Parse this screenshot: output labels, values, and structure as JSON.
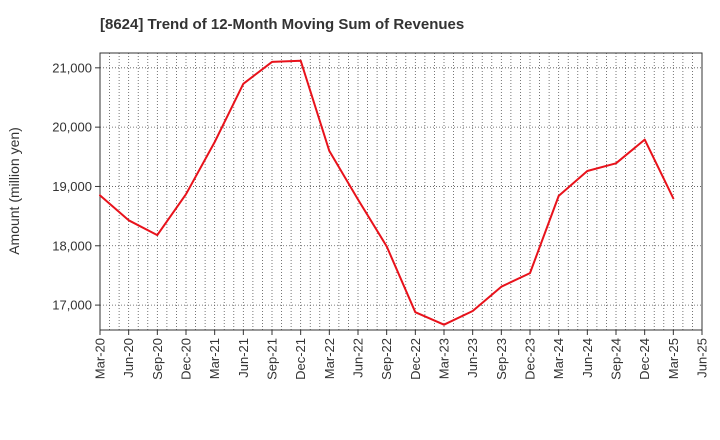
{
  "title": "[8624]  Trend of 12-Month Moving Sum of Revenues",
  "colors": {
    "line": "#e8121b",
    "grid": "#555555",
    "axis": "#333333"
  },
  "chart_data": {
    "type": "line",
    "title": "[8624]  Trend of 12-Month Moving Sum of Revenues",
    "xlabel": "",
    "ylabel": "Amount (million yen)",
    "x_ticks": [
      "Mar-20",
      "Jun-20",
      "Sep-20",
      "Dec-20",
      "Mar-21",
      "Jun-21",
      "Sep-21",
      "Dec-21",
      "Mar-22",
      "Jun-22",
      "Sep-22",
      "Dec-22",
      "Mar-23",
      "Jun-23",
      "Sep-23",
      "Dec-23",
      "Mar-24",
      "Jun-24",
      "Sep-24",
      "Dec-24",
      "Mar-25",
      "Jun-25"
    ],
    "y_ticks": [
      17000,
      18000,
      19000,
      20000,
      21000
    ],
    "y_tick_labels": [
      "17,000",
      "18,000",
      "19,000",
      "20,000",
      "21,000"
    ],
    "ylim": [
      16580,
      21250
    ],
    "grid": true,
    "series": [
      {
        "x": [
          "Mar-20",
          "Jun-20",
          "Sep-20",
          "Dec-20",
          "Mar-21",
          "Jun-21",
          "Sep-21",
          "Dec-21",
          "Mar-22",
          "Jun-22",
          "Sep-22",
          "Dec-22",
          "Mar-23",
          "Jun-23",
          "Sep-23",
          "Dec-23",
          "Mar-24",
          "Jun-24",
          "Sep-24",
          "Dec-24",
          "Mar-25"
        ],
        "values": [
          18850,
          18430,
          18180,
          18870,
          19750,
          20730,
          21100,
          21120,
          19600,
          18780,
          17990,
          16880,
          16670,
          16900,
          17310,
          17540,
          18840,
          19260,
          19390,
          19790,
          18800
        ]
      }
    ]
  }
}
